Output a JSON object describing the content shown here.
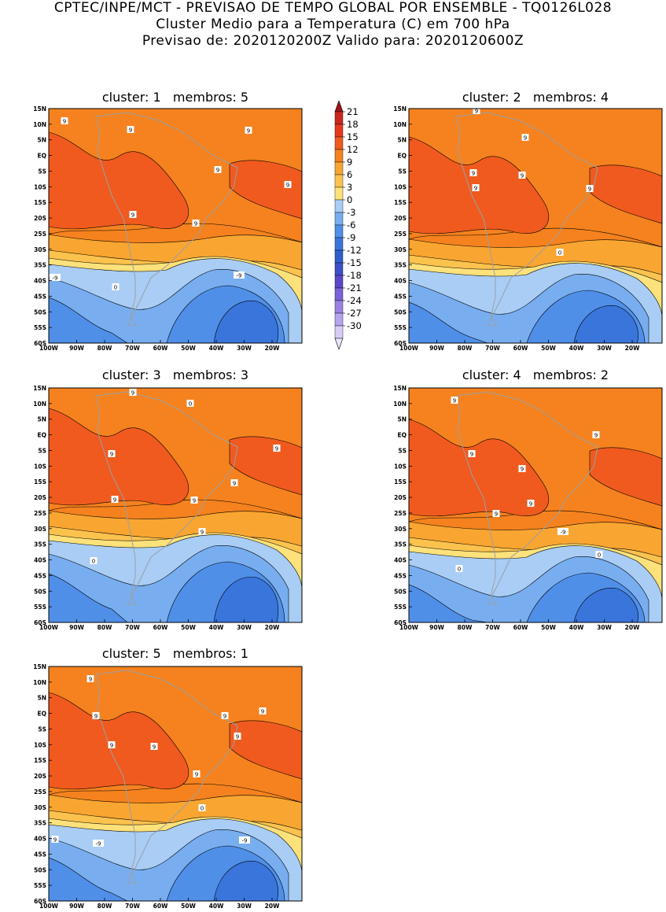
{
  "header": {
    "line1": "CPTEC/INPE/MCT - PREVISAO DE TEMPO GLOBAL POR ENSEMBLE - TQ0126L028",
    "line2": "Cluster Medio para a Temperatura (C) em 700 hPa",
    "line3": "Previsao de: 2020120200Z   Valido para: 2020120600Z"
  },
  "colorbar": {
    "levels": [
      "21",
      "18",
      "15",
      "12",
      "9",
      "6",
      "3",
      "0",
      "-3",
      "-6",
      "-9",
      "-12",
      "-15",
      "-18",
      "-21",
      "-24",
      "-27",
      "-30"
    ],
    "colors": [
      "#c8281e",
      "#e63a1e",
      "#f05a1e",
      "#f5821e",
      "#f9a531",
      "#fbc24e",
      "#fde17a",
      "#a9cdf5",
      "#78aef0",
      "#4f8fe8",
      "#3a75dc",
      "#2f5fcc",
      "#3c4fc8",
      "#5b48c8",
      "#7b62d8",
      "#9a82e4",
      "#b7a3ef",
      "#d8ccf7"
    ],
    "top_color": "#a01218",
    "bottom_color": "#ece6fb"
  },
  "axes": {
    "x_ticks": [
      "100W",
      "90W",
      "80W",
      "70W",
      "60W",
      "50W",
      "40W",
      "30W",
      "20W"
    ],
    "y_ticks": [
      "15N",
      "10N",
      "5N",
      "EQ",
      "5S",
      "10S",
      "15S",
      "20S",
      "25S",
      "30S",
      "35S",
      "40S",
      "45S",
      "50S",
      "55S",
      "60S"
    ]
  },
  "panels": [
    {
      "title": "cluster: 1   membros: 5",
      "contour_labels": [
        "9",
        "9",
        "9",
        "9",
        "9",
        "9",
        "9",
        "-9",
        "-9",
        "0"
      ]
    },
    {
      "title": "cluster: 2   membros: 4",
      "contour_labels": [
        "9",
        "9",
        "9",
        "9",
        "9",
        "9",
        "0"
      ]
    },
    {
      "title": "cluster: 3   membros: 3",
      "contour_labels": [
        "9",
        "9",
        "9",
        "9",
        "9",
        "9",
        "9",
        "0",
        "0"
      ]
    },
    {
      "title": "cluster: 4   membros: 2",
      "contour_labels": [
        "9",
        "9",
        "9",
        "9",
        "9",
        "9",
        "9",
        "0",
        "0",
        "-9"
      ]
    },
    {
      "title": "cluster: 5   membros: 1",
      "contour_labels": [
        "9",
        "9",
        "9",
        "9",
        "9",
        "9",
        "9",
        "9",
        "9",
        "-9",
        "-9",
        "0",
        "0"
      ]
    }
  ]
}
